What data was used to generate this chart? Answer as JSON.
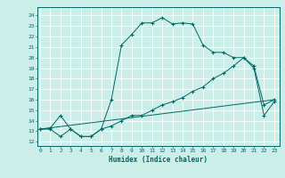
{
  "title": "",
  "xlabel": "Humidex (Indice chaleur)",
  "ylabel": "",
  "bg_color": "#cceee8",
  "line_color": "#006666",
  "grid_color": "#ffffff",
  "x_ticks": [
    0,
    1,
    2,
    3,
    4,
    5,
    6,
    7,
    8,
    9,
    10,
    11,
    12,
    13,
    14,
    15,
    16,
    17,
    18,
    19,
    20,
    21,
    22,
    23
  ],
  "y_ticks": [
    12,
    13,
    14,
    15,
    16,
    17,
    18,
    19,
    20,
    21,
    22,
    23,
    24
  ],
  "xlim": [
    -0.3,
    23.5
  ],
  "ylim": [
    11.6,
    24.8
  ],
  "series1_x": [
    0,
    1,
    2,
    3,
    4,
    5,
    6,
    7,
    8,
    9,
    10,
    11,
    12,
    13,
    14,
    15,
    16,
    17,
    18,
    19,
    20,
    21,
    22,
    23
  ],
  "series1_y": [
    13.2,
    13.3,
    14.5,
    13.2,
    12.5,
    12.5,
    13.2,
    16.0,
    21.2,
    22.2,
    23.3,
    23.3,
    23.8,
    23.2,
    23.3,
    23.2,
    21.2,
    20.5,
    20.5,
    20.0,
    20.0,
    19.0,
    14.5,
    15.8
  ],
  "series2_x": [
    0,
    1,
    2,
    3,
    4,
    5,
    6,
    7,
    8,
    9,
    10,
    11,
    12,
    13,
    14,
    15,
    16,
    17,
    18,
    19,
    20,
    21,
    22,
    23
  ],
  "series2_y": [
    13.2,
    13.2,
    12.5,
    13.2,
    12.5,
    12.5,
    13.2,
    13.5,
    14.0,
    14.5,
    14.5,
    15.0,
    15.5,
    15.8,
    16.2,
    16.8,
    17.2,
    18.0,
    18.5,
    19.2,
    20.0,
    19.2,
    15.5,
    16.0
  ],
  "series3_x": [
    0,
    23
  ],
  "series3_y": [
    13.2,
    16.0
  ]
}
